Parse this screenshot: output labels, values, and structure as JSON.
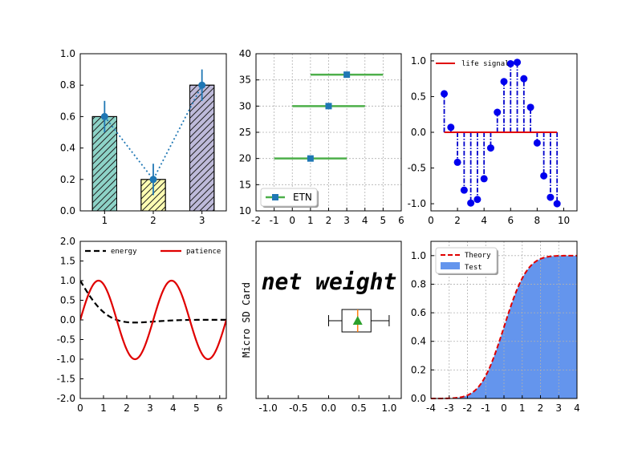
{
  "chart_data": [
    {
      "type": "bar",
      "categories": [
        "1",
        "2",
        "3"
      ],
      "values": [
        0.6,
        0.2,
        0.8
      ],
      "errors": [
        0.1,
        0.1,
        0.1
      ],
      "colors": [
        "#8dd3c7",
        "#ffffb3",
        "#bebada"
      ],
      "hatch": "diagonal",
      "overlay_line": {
        "x": [
          1,
          2,
          3
        ],
        "y": [
          0.6,
          0.2,
          0.8
        ],
        "style": "dotted",
        "color": "#1f77b4"
      },
      "ylim": [
        0,
        1.0
      ],
      "yticks": [
        "0.0",
        "0.2",
        "0.4",
        "0.6",
        "0.8",
        "1.0"
      ],
      "grid": false
    },
    {
      "type": "scatter",
      "series": [
        {
          "name": "ETN",
          "x": [
            1,
            2,
            3
          ],
          "y": [
            20,
            30,
            36
          ],
          "xerr": [
            2,
            2,
            2
          ]
        }
      ],
      "xlim": [
        -2,
        6
      ],
      "ylim": [
        10,
        40
      ],
      "xticks": [
        "-2",
        "-1",
        "0",
        "1",
        "2",
        "3",
        "4",
        "5",
        "6"
      ],
      "yticks": [
        "10",
        "15",
        "20",
        "25",
        "30",
        "35",
        "40"
      ],
      "grid": true,
      "legend": "lower-left",
      "colors": {
        "marker": "#1f77b4",
        "errbar": "#4daf4a"
      }
    },
    {
      "type": "stem",
      "series": [
        {
          "name": "life signal",
          "x": [
            1.0,
            1.5,
            2.0,
            2.5,
            3.0,
            3.5,
            4.0,
            4.5,
            5.0,
            5.5,
            6.0,
            6.5,
            7.0,
            7.5,
            8.0,
            8.5,
            9.0,
            9.5
          ],
          "y": [
            0.54,
            0.07,
            -0.42,
            -0.81,
            -0.99,
            -0.94,
            -0.65,
            -0.22,
            0.28,
            0.71,
            0.96,
            0.98,
            0.75,
            0.35,
            -0.15,
            -0.61,
            -0.91,
            -1.0
          ]
        }
      ],
      "baseline": 0,
      "xlim": [
        0,
        11
      ],
      "ylim": [
        -1.1,
        1.1
      ],
      "xticks": [
        "0",
        "2",
        "4",
        "6",
        "8",
        "10"
      ],
      "yticks": [
        "-1.0",
        "-0.5",
        "0.0",
        "0.5",
        "1.0"
      ],
      "legend": "top-left",
      "colors": {
        "stem": "#0000cc",
        "marker": "#0000ee",
        "baseline": "#e00000"
      }
    },
    {
      "type": "line",
      "series": [
        {
          "name": "energy",
          "function": "cos(x)*exp(-x)",
          "style": "dashed",
          "color": "#000000"
        },
        {
          "name": "patience",
          "function": "sin(2x)",
          "style": "solid",
          "color": "#e00000"
        }
      ],
      "xlim": [
        0,
        6.283
      ],
      "ylim": [
        -2.0,
        2.0
      ],
      "xticks": [
        "0",
        "1",
        "2",
        "3",
        "4",
        "5",
        "6"
      ],
      "yticks": [
        "-2.0",
        "-1.5",
        "-1.0",
        "-0.5",
        "0.0",
        "0.5",
        "1.0",
        "1.5",
        "2.0"
      ],
      "legend": "top"
    },
    {
      "type": "box",
      "box": {
        "whisker_low": 0.0,
        "q1": 0.22,
        "median": 0.48,
        "mean": 0.48,
        "q3": 0.7,
        "whisker_high": 1.0
      },
      "xlim": [
        -1.2,
        1.2
      ],
      "xticks": [
        "-1.0",
        "-0.5",
        "0.0",
        "0.5",
        "1.0"
      ],
      "text": "net weight",
      "ylabel": "Micro SD Card",
      "colors": {
        "median": "#ff7f0e",
        "mean": "#2ca02c"
      }
    },
    {
      "type": "area",
      "series": [
        {
          "name": "Theory",
          "function": "normal_cdf",
          "style": "dashed",
          "color": "#e00000"
        },
        {
          "name": "Test",
          "function": "normal_cdf",
          "fill": "#6495ed"
        }
      ],
      "xlim": [
        -4,
        4
      ],
      "ylim": [
        0,
        1.1
      ],
      "xticks": [
        "-4",
        "-3",
        "-2",
        "-1",
        "0",
        "1",
        "2",
        "3",
        "4"
      ],
      "yticks": [
        "0.0",
        "0.2",
        "0.4",
        "0.6",
        "0.8",
        "1.0"
      ],
      "grid": true,
      "legend": "top-left"
    }
  ]
}
